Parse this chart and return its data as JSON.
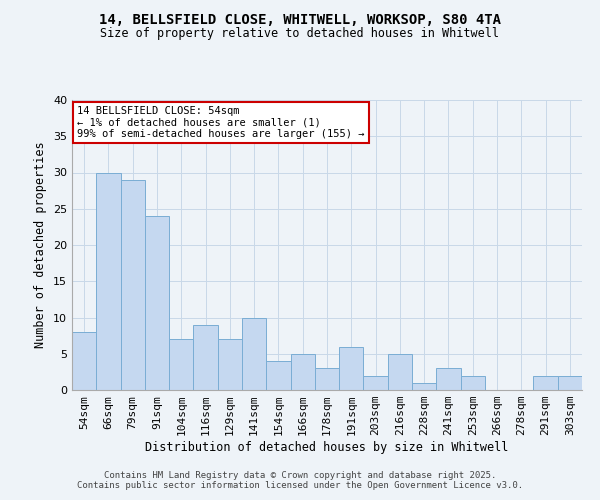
{
  "title_line1": "14, BELLSFIELD CLOSE, WHITWELL, WORKSOP, S80 4TA",
  "title_line2": "Size of property relative to detached houses in Whitwell",
  "xlabel": "Distribution of detached houses by size in Whitwell",
  "ylabel": "Number of detached properties",
  "categories": [
    "54sqm",
    "66sqm",
    "79sqm",
    "91sqm",
    "104sqm",
    "116sqm",
    "129sqm",
    "141sqm",
    "154sqm",
    "166sqm",
    "178sqm",
    "191sqm",
    "203sqm",
    "216sqm",
    "228sqm",
    "241sqm",
    "253sqm",
    "266sqm",
    "278sqm",
    "291sqm",
    "303sqm"
  ],
  "values": [
    8,
    30,
    29,
    24,
    7,
    9,
    7,
    10,
    4,
    5,
    3,
    6,
    2,
    5,
    1,
    3,
    2,
    0,
    0,
    2,
    2
  ],
  "bar_color": "#c5d8f0",
  "bar_edge_color": "#7aadd4",
  "annotation_box_text": "14 BELLSFIELD CLOSE: 54sqm\n← 1% of detached houses are smaller (1)\n99% of semi-detached houses are larger (155) →",
  "annotation_box_color": "#ffffff",
  "annotation_box_edge_color": "#cc0000",
  "grid_color": "#c8d8e8",
  "background_color": "#eef3f8",
  "ylim": [
    0,
    40
  ],
  "yticks": [
    0,
    5,
    10,
    15,
    20,
    25,
    30,
    35,
    40
  ],
  "footer_text": "Contains HM Land Registry data © Crown copyright and database right 2025.\nContains public sector information licensed under the Open Government Licence v3.0.",
  "highlight_bar_index": 0
}
